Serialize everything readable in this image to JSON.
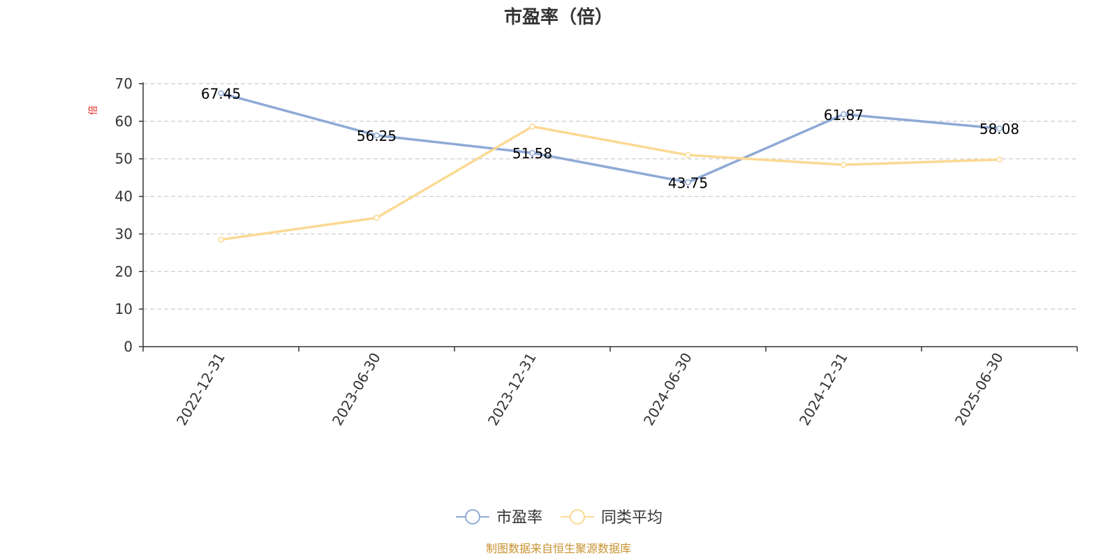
{
  "chart_data": {
    "type": "line",
    "title": "市盈率（倍）",
    "xlabel": "",
    "ylabel": "倍",
    "categories": [
      "2022-12-31",
      "2023-06-30",
      "2023-12-31",
      "2024-06-30",
      "2024-12-31",
      "2025-06-30"
    ],
    "ylim": [
      0,
      70
    ],
    "yticks": [
      0,
      10,
      20,
      30,
      40,
      50,
      60,
      70
    ],
    "grid": true,
    "legend_position": "bottom",
    "series": [
      {
        "name": "市盈率",
        "color": "#8eaad6",
        "values": [
          67.45,
          56.25,
          51.58,
          43.75,
          61.87,
          58.08
        ],
        "show_labels": true
      },
      {
        "name": "同类平均",
        "color": "#fbd993",
        "values": [
          28.5,
          34.3,
          58.6,
          51.0,
          48.4,
          49.8
        ],
        "show_labels": false
      }
    ],
    "data_labels": [
      "67.45",
      "56.25",
      "51.58",
      "43.75",
      "61.87",
      "58.08"
    ]
  },
  "source_note": "制图数据来自恒生聚源数据库"
}
